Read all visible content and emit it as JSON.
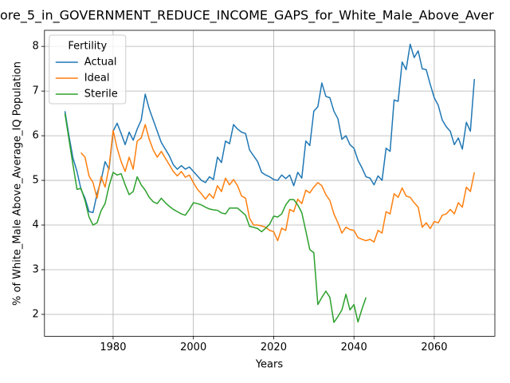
{
  "chart_data": {
    "type": "line",
    "title": "ore_5_in_GOVERNMENT_REDUCE_INCOME_GAPS_for_White_Male_Above_Aver",
    "x_label": "Years",
    "y_label": "% of White_Male Above_Average_IQ Population",
    "legend_title": "Fertility",
    "legend_position": "upper left",
    "grid": true,
    "x": [
      1968,
      1969,
      1970,
      1971,
      1972,
      1973,
      1974,
      1975,
      1976,
      1977,
      1978,
      1979,
      1980,
      1981,
      1982,
      1983,
      1984,
      1985,
      1986,
      1987,
      1988,
      1989,
      1990,
      1991,
      1992,
      1993,
      1994,
      1995,
      1996,
      1997,
      1998,
      1999,
      2000,
      2001,
      2002,
      2003,
      2004,
      2005,
      2006,
      2007,
      2008,
      2009,
      2010,
      2011,
      2012,
      2013,
      2014,
      2015,
      2016,
      2017,
      2018,
      2019,
      2020,
      2021,
      2022,
      2023,
      2024,
      2025,
      2026,
      2027,
      2028,
      2029,
      2030,
      2031,
      2032,
      2033,
      2034,
      2035,
      2036,
      2037,
      2038,
      2039,
      2040,
      2041,
      2042,
      2043,
      2044,
      2045,
      2046,
      2047,
      2048,
      2049,
      2050,
      2051,
      2052,
      2053,
      2054,
      2055,
      2056,
      2057,
      2058,
      2059,
      2060,
      2061,
      2062,
      2063,
      2064,
      2065,
      2066,
      2067,
      2068,
      2069,
      2070
    ],
    "xlim": [
      1962.9,
      2075.1
    ],
    "xticks": [
      1980,
      2000,
      2020,
      2040,
      2060
    ],
    "ylim": [
      1.51,
      8.36
    ],
    "yticks": [
      2,
      3,
      4,
      5,
      6,
      7,
      8
    ],
    "series": [
      {
        "name": "Actual",
        "color": "#1f77b4",
        "values": [
          6.55,
          6.0,
          5.5,
          5.2,
          4.8,
          4.6,
          4.3,
          4.28,
          4.7,
          5.0,
          5.42,
          5.25,
          6.1,
          6.28,
          6.05,
          5.8,
          6.08,
          5.9,
          6.15,
          6.35,
          6.93,
          6.6,
          6.35,
          6.1,
          5.85,
          5.7,
          5.55,
          5.35,
          5.25,
          5.33,
          5.25,
          5.3,
          5.2,
          5.1,
          5.0,
          4.95,
          5.08,
          5.02,
          5.52,
          5.4,
          5.88,
          5.82,
          6.25,
          6.15,
          6.08,
          6.05,
          5.68,
          5.55,
          5.42,
          5.18,
          5.12,
          5.08,
          5.02,
          5.0,
          5.12,
          5.04,
          5.12,
          4.88,
          5.18,
          5.05,
          5.88,
          5.78,
          6.55,
          6.65,
          7.18,
          6.88,
          6.85,
          6.55,
          6.38,
          5.92,
          6.0,
          5.8,
          5.72,
          5.45,
          5.28,
          5.08,
          5.05,
          4.9,
          5.1,
          5.0,
          5.72,
          5.65,
          6.8,
          6.77,
          7.65,
          7.48,
          8.05,
          7.75,
          7.9,
          7.5,
          7.48,
          7.15,
          6.85,
          6.68,
          6.35,
          6.2,
          6.1,
          5.8,
          5.95,
          5.7,
          6.3,
          6.1,
          7.27
        ]
      },
      {
        "name": "Ideal",
        "color": "#ff7f0e",
        "values": [
          null,
          null,
          null,
          null,
          5.62,
          5.52,
          5.1,
          4.95,
          4.6,
          5.08,
          4.85,
          5.3,
          6.12,
          5.72,
          5.42,
          5.2,
          5.52,
          5.25,
          5.88,
          5.95,
          6.25,
          5.92,
          5.68,
          5.52,
          5.65,
          5.5,
          5.35,
          5.2,
          5.1,
          5.2,
          5.07,
          5.12,
          4.95,
          4.8,
          4.7,
          4.58,
          4.7,
          4.6,
          4.88,
          4.75,
          5.05,
          4.9,
          5.02,
          4.88,
          4.65,
          4.6,
          4.15,
          4.0,
          4.0,
          3.98,
          3.95,
          3.88,
          3.85,
          3.65,
          3.93,
          3.88,
          4.35,
          4.3,
          4.58,
          4.48,
          4.78,
          4.72,
          4.85,
          4.95,
          4.88,
          4.68,
          4.55,
          4.25,
          4.05,
          3.82,
          3.95,
          3.9,
          3.88,
          3.72,
          3.68,
          3.65,
          3.68,
          3.62,
          3.88,
          3.82,
          4.3,
          4.25,
          4.7,
          4.62,
          4.83,
          4.65,
          4.62,
          4.5,
          4.4,
          3.95,
          4.05,
          3.92,
          4.08,
          4.05,
          4.22,
          4.25,
          4.35,
          4.25,
          4.5,
          4.4,
          4.85,
          4.75,
          5.18
        ]
      },
      {
        "name": "Sterile",
        "color": "#2ca02c",
        "values": [
          6.5,
          5.92,
          5.35,
          4.8,
          4.82,
          4.55,
          4.18,
          4.0,
          4.05,
          4.32,
          4.48,
          4.88,
          5.18,
          5.12,
          5.15,
          4.9,
          4.68,
          4.75,
          5.08,
          4.9,
          4.78,
          4.62,
          4.52,
          4.48,
          4.6,
          4.5,
          4.42,
          4.35,
          4.3,
          4.25,
          4.22,
          4.35,
          4.5,
          4.48,
          4.45,
          4.4,
          4.36,
          4.34,
          4.33,
          4.27,
          4.25,
          4.38,
          4.38,
          4.38,
          4.3,
          4.22,
          3.97,
          3.95,
          3.92,
          3.85,
          3.93,
          4.02,
          4.2,
          4.18,
          4.25,
          4.45,
          4.57,
          4.57,
          4.45,
          4.28,
          3.87,
          3.45,
          3.38,
          2.22,
          2.38,
          2.52,
          2.38,
          1.82,
          1.95,
          2.1,
          2.45,
          2.1,
          2.22,
          1.83,
          2.12,
          2.38,
          null,
          null,
          null,
          null,
          null,
          null,
          null,
          null,
          null,
          null,
          null,
          null,
          null,
          null,
          null,
          null,
          null,
          null,
          null,
          null,
          null,
          null,
          null,
          null,
          null,
          null,
          null
        ]
      }
    ]
  }
}
